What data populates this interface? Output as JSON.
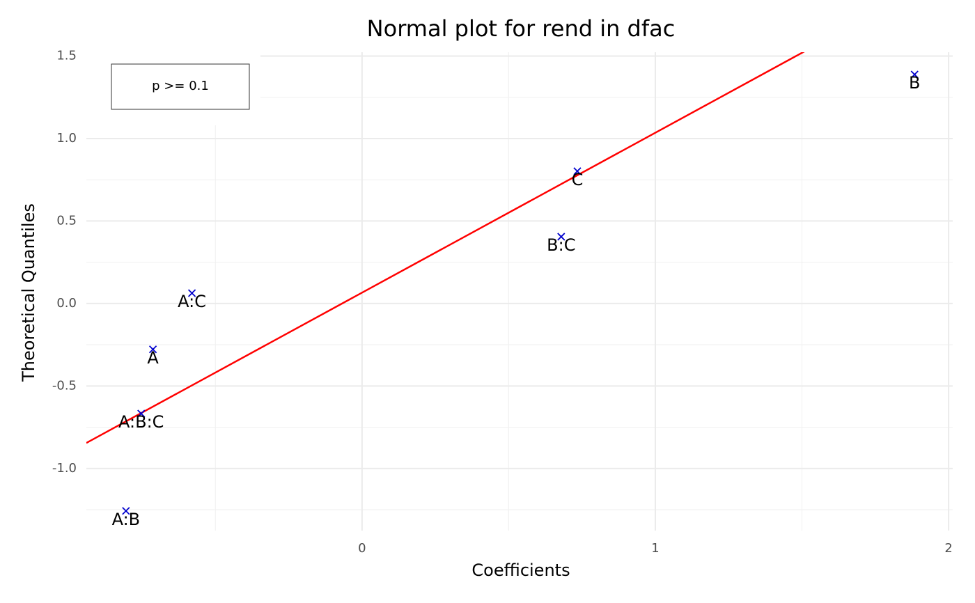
{
  "chart_data": {
    "type": "scatter",
    "title": "Normal plot for rend in dfac",
    "xlabel": "Coefficients",
    "ylabel": "Theoretical Quantiles",
    "point_labels": [
      "B",
      "C",
      "B:C",
      "A:C",
      "A",
      "A:B:C",
      "A:B"
    ],
    "x": [
      1.884,
      0.734,
      0.679,
      -0.58,
      -0.713,
      -0.753,
      -0.805
    ],
    "values": [
      1.388,
      0.802,
      0.405,
      0.063,
      -0.278,
      -0.667,
      -1.257
    ],
    "color": "#0000cd",
    "reference_line": {
      "intercept": 0.066,
      "slope": 0.969,
      "color": "#ff0000"
    },
    "legend": {
      "label": "p >= 0.1",
      "position": "upper left"
    },
    "xlim": [
      -0.94,
      2.014
    ],
    "ylim": [
      -1.376,
      1.523
    ],
    "xticks": [
      0,
      1,
      2
    ],
    "yticks": [
      {
        "value": -1,
        "label": "-1.0"
      },
      -0.5,
      {
        "value": 0,
        "label": "0.0"
      },
      0.5,
      {
        "value": 1,
        "label": "1.0"
      },
      1.5
    ],
    "xminor": [
      -0.5,
      0.5,
      1.5
    ],
    "yminor": [
      -1.25,
      -0.75,
      -0.25,
      0.25,
      0.75,
      1.25
    ],
    "grid": true
  }
}
